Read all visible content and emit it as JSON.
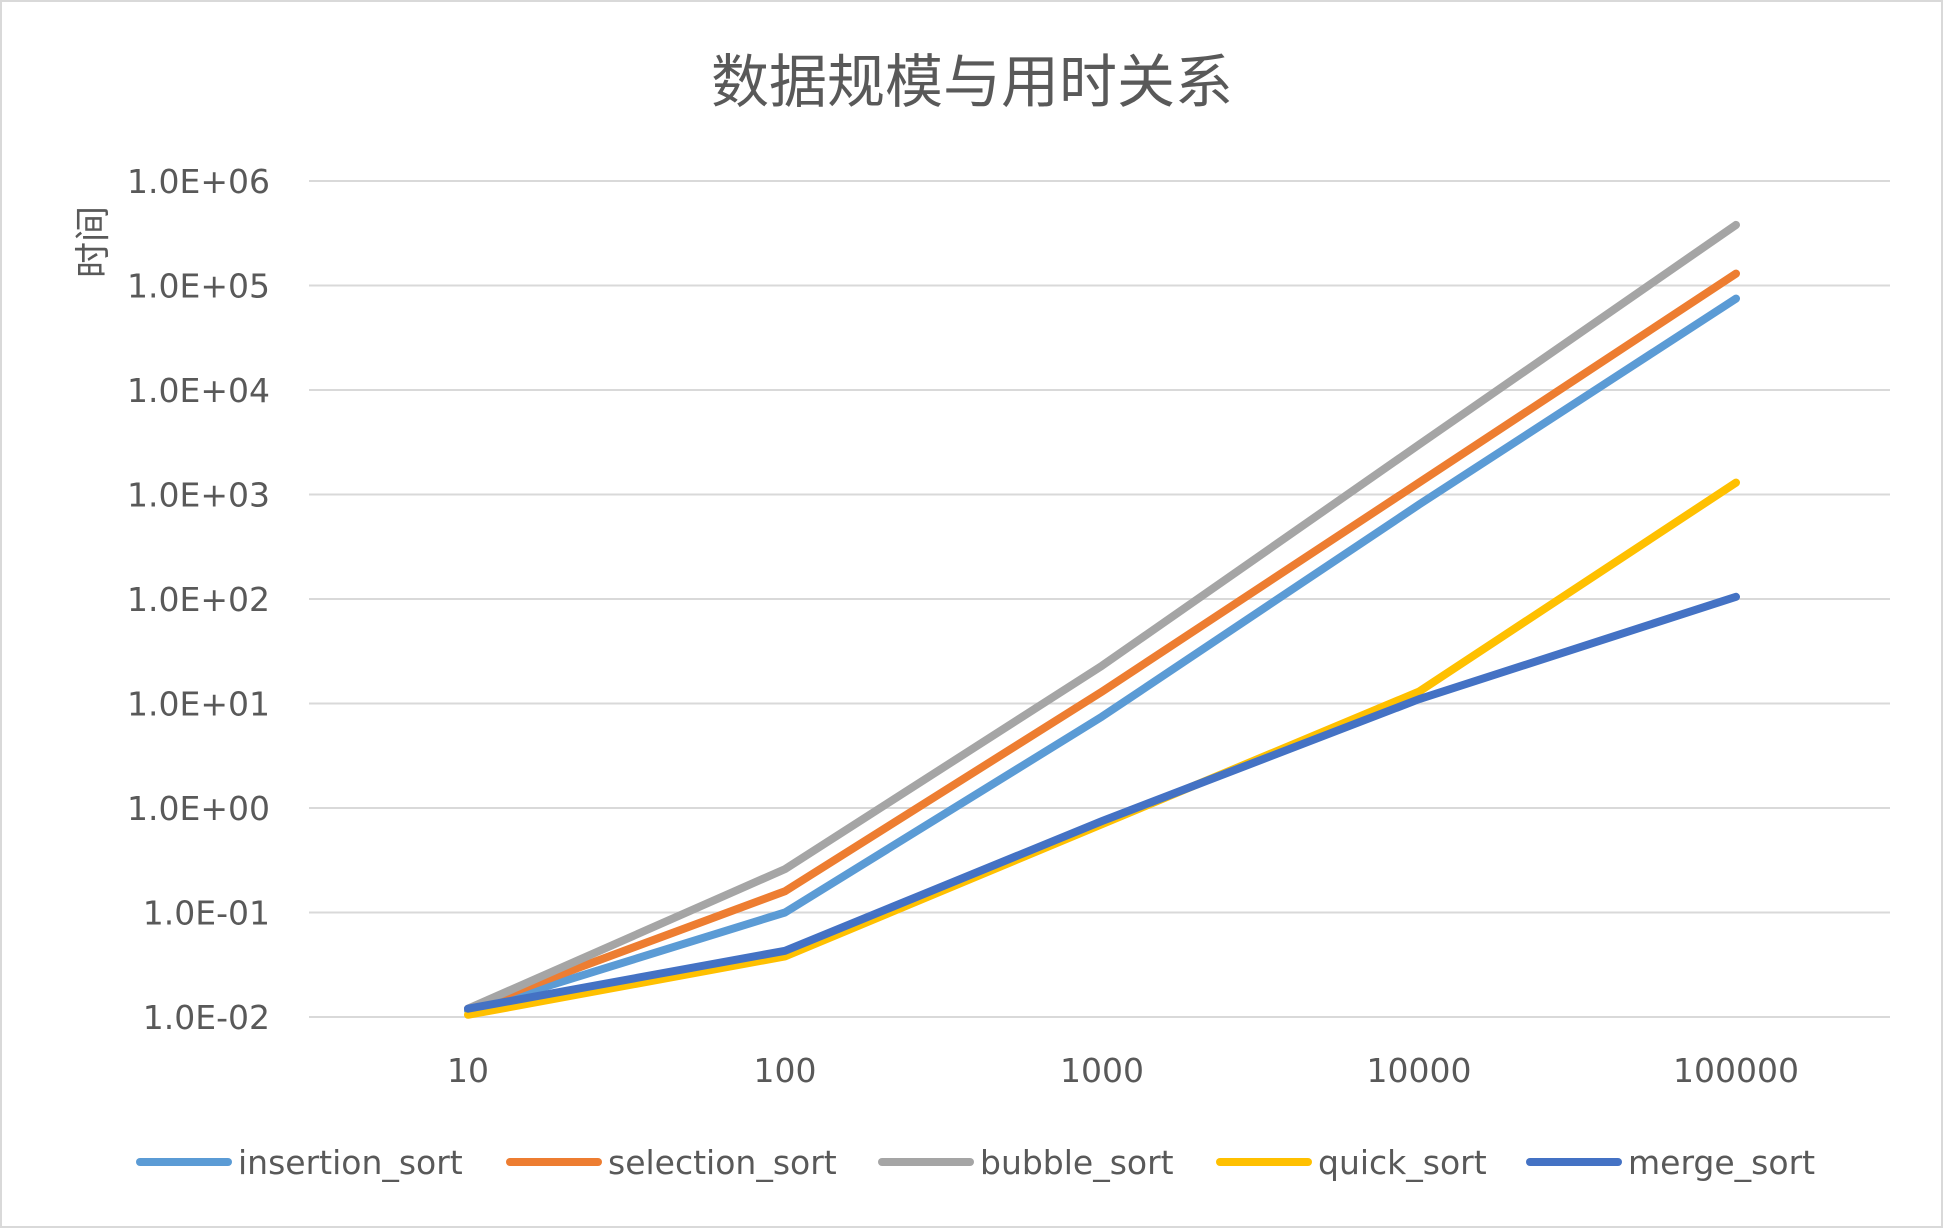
{
  "chart_data": {
    "type": "line",
    "title": "数据规模与用时关系",
    "xlabel": "",
    "ylabel": "时间",
    "x_scale": "log",
    "y_scale": "log",
    "categories": [
      "10",
      "100",
      "1000",
      "10000",
      "100000"
    ],
    "x": [
      10,
      100,
      1000,
      10000,
      100000
    ],
    "y_ticks": [
      "1.0E-02",
      "1.0E-01",
      "1.0E+00",
      "1.0E+01",
      "1.0E+02",
      "1.0E+03",
      "1.0E+04",
      "1.0E+05",
      "1.0E+06"
    ],
    "ylim": [
      0.01,
      1000000
    ],
    "grid": true,
    "legend_position": "bottom",
    "series": [
      {
        "name": "insertion_sort",
        "color": "#5B9BD5",
        "values": [
          0.0115,
          0.1,
          7.5,
          800,
          75000
        ]
      },
      {
        "name": "selection_sort",
        "color": "#ED7D31",
        "values": [
          0.012,
          0.16,
          13,
          1300,
          130000
        ]
      },
      {
        "name": "bubble_sort",
        "color": "#A5A5A5",
        "values": [
          0.012,
          0.26,
          23,
          3000,
          380000
        ]
      },
      {
        "name": "quick_sort",
        "color": "#FFC000",
        "values": [
          0.0105,
          0.038,
          0.7,
          13,
          1300
        ]
      },
      {
        "name": "merge_sort",
        "color": "#4472C4",
        "values": [
          0.012,
          0.043,
          0.75,
          11,
          105
        ]
      }
    ]
  }
}
